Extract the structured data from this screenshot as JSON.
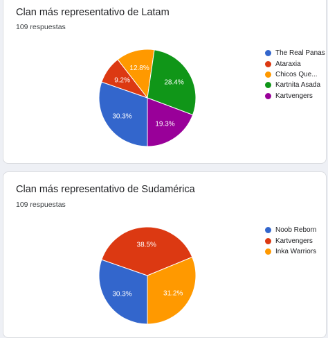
{
  "chart_data": [
    {
      "type": "pie",
      "title": "Clan más representativo de Latam",
      "subtitle": "109 respuestas",
      "legend_position": "right",
      "series": [
        {
          "name": "The Real Panas",
          "value": 30.3,
          "label": "30.3%",
          "color": "#3366cc"
        },
        {
          "name": "Ataraxia",
          "value": 9.2,
          "label": "9.2%",
          "color": "#dc3912"
        },
        {
          "name": "Chicos Que...",
          "value": 12.8,
          "label": "12.8%",
          "color": "#ff9900"
        },
        {
          "name": "Kartnita Asada",
          "value": 28.4,
          "label": "28.4%",
          "color": "#109618"
        },
        {
          "name": "Kartvengers",
          "value": 19.3,
          "label": "19.3%",
          "color": "#990099"
        }
      ]
    },
    {
      "type": "pie",
      "title": "Clan más representativo de Sudamérica",
      "subtitle": "109 respuestas",
      "legend_position": "right",
      "series": [
        {
          "name": "Noob Reborn",
          "value": 30.3,
          "label": "30.3%",
          "color": "#3366cc"
        },
        {
          "name": "Kartvengers",
          "value": 38.5,
          "label": "38.5%",
          "color": "#dc3912"
        },
        {
          "name": "Inka Warriors",
          "value": 31.2,
          "label": "31.2%",
          "color": "#ff9900"
        }
      ]
    }
  ]
}
